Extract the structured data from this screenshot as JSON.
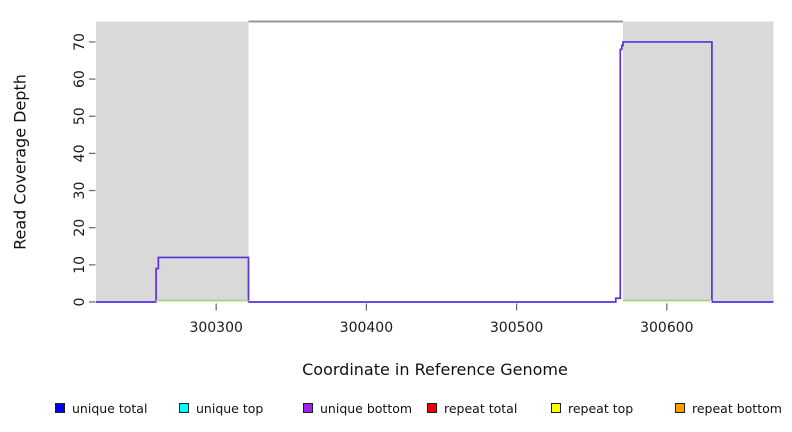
{
  "chart_data": {
    "type": "line",
    "xlabel": "Coordinate in Reference Genome",
    "ylabel": "Read Coverage Depth",
    "xlim": [
      300220,
      300671
    ],
    "ylim": [
      0,
      75.5
    ],
    "x_ticks": [
      300300,
      300400,
      300500,
      300600
    ],
    "y_ticks": [
      0,
      10,
      20,
      30,
      40,
      50,
      60,
      70
    ],
    "grid": false,
    "legend_position": "bottom-horizontal",
    "shaded_regions": [
      {
        "x0": 300220,
        "x1": 300321.5,
        "color": "#d9d9d9"
      },
      {
        "x0": 300570.8,
        "x1": 300671,
        "color": "#d9d9d9"
      }
    ],
    "box_top_segment": {
      "x0": 300321.5,
      "x1": 300570.8,
      "color": "#989898"
    },
    "series": [
      {
        "name": "unique total coverage",
        "color": "#5b2fe0",
        "points": [
          [
            300220,
            0
          ],
          [
            300260,
            0
          ],
          [
            300260,
            9
          ],
          [
            300261.5,
            9
          ],
          [
            300261.5,
            12
          ],
          [
            300321.5,
            12
          ],
          [
            300321.5,
            0
          ],
          [
            300566,
            0
          ],
          [
            300566,
            1
          ],
          [
            300569,
            1
          ],
          [
            300569,
            68
          ],
          [
            300570,
            68
          ],
          [
            300570,
            69
          ],
          [
            300570.8,
            69
          ],
          [
            300570.8,
            70
          ],
          [
            300630,
            70
          ],
          [
            300630,
            0
          ],
          [
            300671,
            0
          ]
        ]
      },
      {
        "name": "baseline-highlight-green",
        "color": "#8fcc8f",
        "y": 0.45,
        "segments": [
          [
            300260,
            300321.5
          ],
          [
            300570.8,
            300630
          ]
        ]
      },
      {
        "name": "baseline-highlight-yellow",
        "color": "#f0ecb4",
        "y": 0.1,
        "segments": [
          [
            300260,
            300321.5
          ],
          [
            300570.8,
            300630
          ]
        ]
      }
    ],
    "legend": [
      {
        "label": "unique total",
        "color": "#0000ee"
      },
      {
        "label": "unique top",
        "color": "#00ffff"
      },
      {
        "label": "unique bottom",
        "color": "#a020f0"
      },
      {
        "label": "repeat total",
        "color": "#ee0000"
      },
      {
        "label": "repeat top",
        "color": "#ffff00"
      },
      {
        "label": "repeat bottom",
        "color": "#ff9d00"
      }
    ]
  }
}
